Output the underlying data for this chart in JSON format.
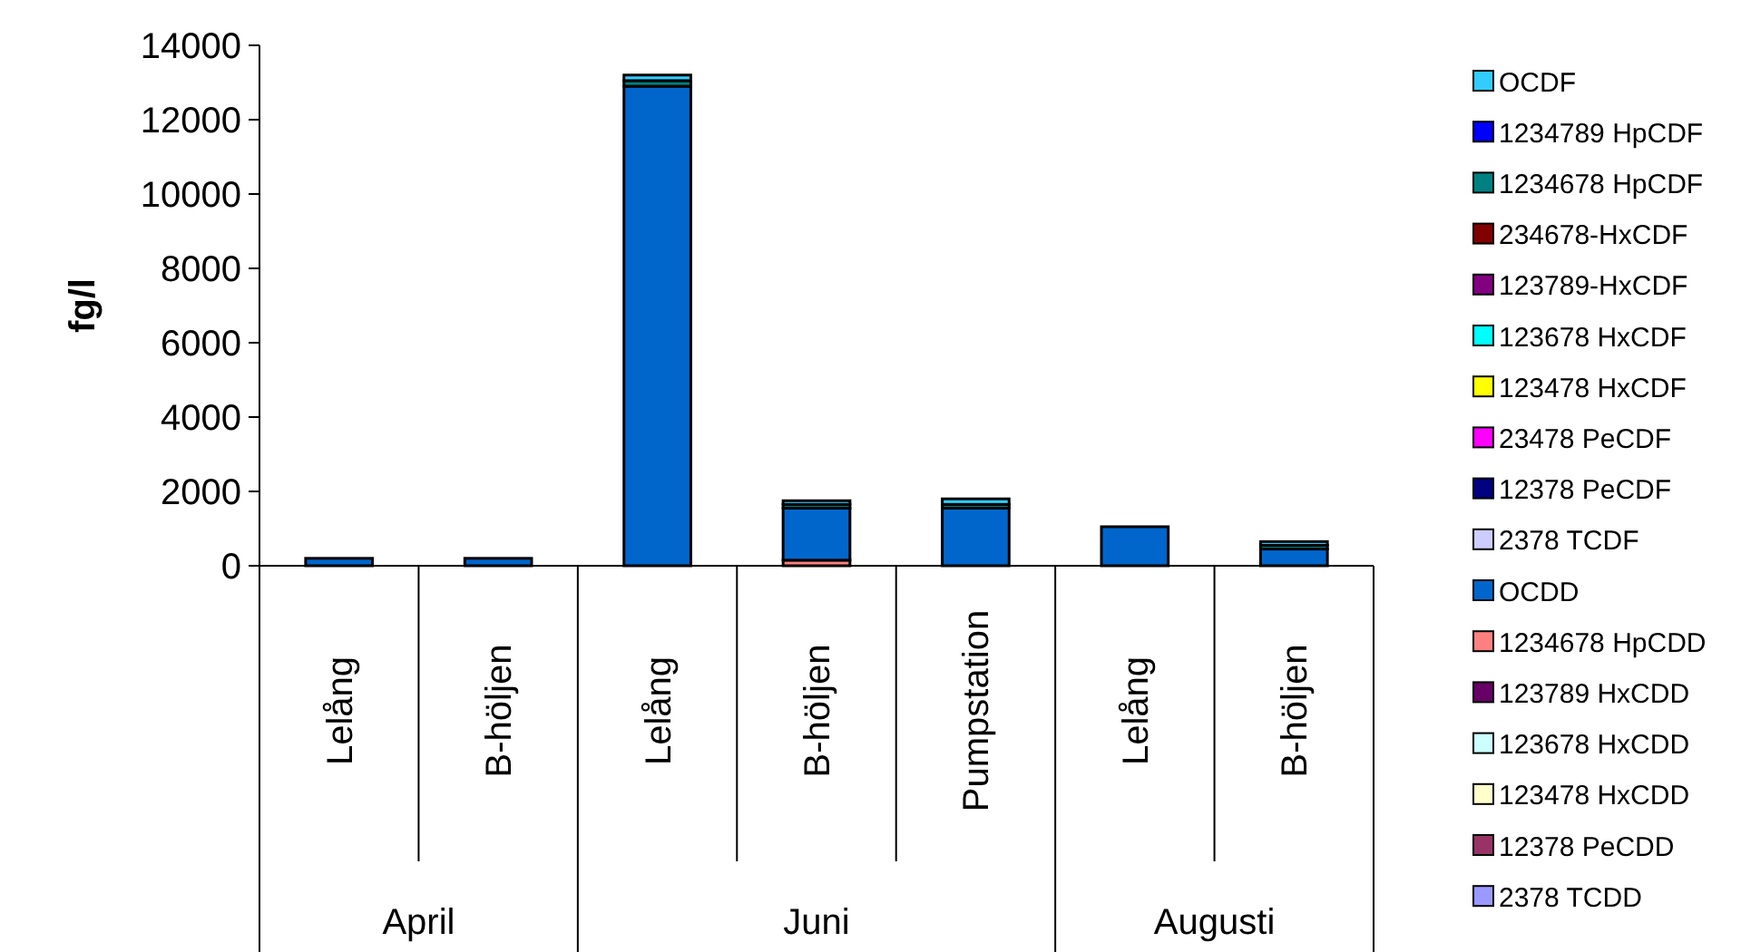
{
  "chart_data": {
    "type": "bar",
    "stacked": true,
    "ylabel": "fg/l",
    "categories": [
      "Lelång",
      "B-höljen",
      "Lelång",
      "B-höljen",
      "Pumpstation",
      "Lelång",
      "B-höljen"
    ],
    "annotations": [
      "April",
      "Juni",
      "Augusti"
    ],
    "ylim": [
      0,
      14000
    ],
    "yticks": [
      0,
      2000,
      4000,
      6000,
      8000,
      10000,
      12000,
      14000
    ],
    "legend": "right",
    "series": [
      {
        "name": "2378 TCDD",
        "color": "#9999ff",
        "values": [
          0,
          0,
          0,
          0,
          0,
          0,
          0
        ]
      },
      {
        "name": "12378 PeCDD",
        "color": "#993366",
        "values": [
          0,
          0,
          0,
          0,
          0,
          0,
          0
        ]
      },
      {
        "name": "123478 HxCDD",
        "color": "#ffffcc",
        "values": [
          0,
          0,
          0,
          0,
          0,
          0,
          0
        ]
      },
      {
        "name": "123678 HxCDD",
        "color": "#ccffff",
        "values": [
          0,
          0,
          0,
          0,
          0,
          0,
          0
        ]
      },
      {
        "name": "123789 HxCDD",
        "color": "#660066",
        "values": [
          0,
          0,
          0,
          0,
          0,
          0,
          0
        ]
      },
      {
        "name": "1234678 HpCDD",
        "color": "#ff8080",
        "values": [
          0,
          0,
          null,
          150,
          null,
          null,
          null
        ]
      },
      {
        "name": "OCDD",
        "color": "#0066cc",
        "values": [
          200,
          200,
          12900,
          1400,
          1550,
          1050,
          450
        ]
      },
      {
        "name": "2378 TCDF",
        "color": "#ccccff",
        "values": [
          0,
          0,
          0,
          0,
          0,
          0,
          0
        ]
      },
      {
        "name": "12378 PeCDF",
        "color": "#000080",
        "values": [
          0,
          0,
          0,
          0,
          0,
          0,
          0
        ]
      },
      {
        "name": "23478 PeCDF",
        "color": "#ff00ff",
        "values": [
          0,
          0,
          0,
          0,
          0,
          0,
          0
        ]
      },
      {
        "name": "123478 HxCDF",
        "color": "#ffff00",
        "values": [
          0,
          0,
          0,
          0,
          0,
          0,
          0
        ]
      },
      {
        "name": "123678 HxCDF",
        "color": "#00ffff",
        "values": [
          0,
          0,
          0,
          0,
          0,
          0,
          0
        ]
      },
      {
        "name": "123789-HxCDF",
        "color": "#800080",
        "values": [
          0,
          0,
          0,
          0,
          0,
          0,
          0
        ]
      },
      {
        "name": "234678-HxCDF",
        "color": "#800000",
        "values": [
          0,
          0,
          0,
          0,
          0,
          0,
          0
        ]
      },
      {
        "name": "1234678 HpCDF",
        "color": "#008080",
        "values": [
          0,
          0,
          150,
          100,
          100,
          0,
          100
        ]
      },
      {
        "name": "1234789 HpCDF",
        "color": "#0000ff",
        "values": [
          0,
          0,
          0,
          0,
          0,
          0,
          0
        ]
      },
      {
        "name": "OCDF",
        "color": "#33ccff",
        "values": [
          0,
          0,
          150,
          100,
          150,
          0,
          100
        ]
      }
    ]
  }
}
